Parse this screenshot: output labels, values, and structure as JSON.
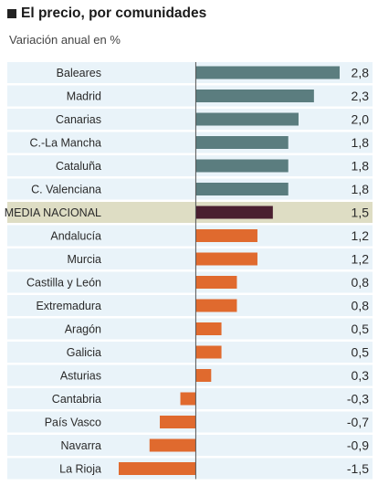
{
  "title": "El precio, por comunidades",
  "subtitle": "Variación anual en %",
  "colors": {
    "above_average": "#5b7d7f",
    "national_average": "#4a1f30",
    "below_average": "#e06a2e",
    "row_background": "#e9f3f9",
    "highlight_row_background": "#deddc4"
  },
  "chart_data": {
    "type": "bar",
    "orientation": "horizontal",
    "title": "El precio, por comunidades",
    "subtitle": "Variación anual en %",
    "xlim": [
      -1.5,
      2.8
    ],
    "categories": [
      "Baleares",
      "Madrid",
      "Canarias",
      "C.-La Mancha",
      "Cataluña",
      "C. Valenciana",
      "MEDIA NACIONAL",
      "Andalucía",
      "Murcia",
      "Castilla y León",
      "Extremadura",
      "Aragón",
      "Galicia",
      "Asturias",
      "Cantabria",
      "País Vasco",
      "Navarra",
      "La Rioja"
    ],
    "values": [
      2.8,
      2.3,
      2.0,
      1.8,
      1.8,
      1.8,
      1.5,
      1.2,
      1.2,
      0.8,
      0.8,
      0.5,
      0.5,
      0.3,
      -0.3,
      -0.7,
      -0.9,
      -1.5
    ],
    "value_labels": [
      "2,8",
      "2,3",
      "2,0",
      "1,8",
      "1,8",
      "1,8",
      "1,5",
      "1,2",
      "1,2",
      "0,8",
      "0,8",
      "0,5",
      "0,5",
      "0,3",
      "-0,3",
      "-0,7",
      "-0,9",
      "-1,5"
    ],
    "groups": [
      "above",
      "above",
      "above",
      "above",
      "above",
      "above",
      "average",
      "below",
      "below",
      "below",
      "below",
      "below",
      "below",
      "below",
      "below",
      "below",
      "below",
      "below"
    ],
    "highlight_category": "MEDIA NACIONAL"
  }
}
